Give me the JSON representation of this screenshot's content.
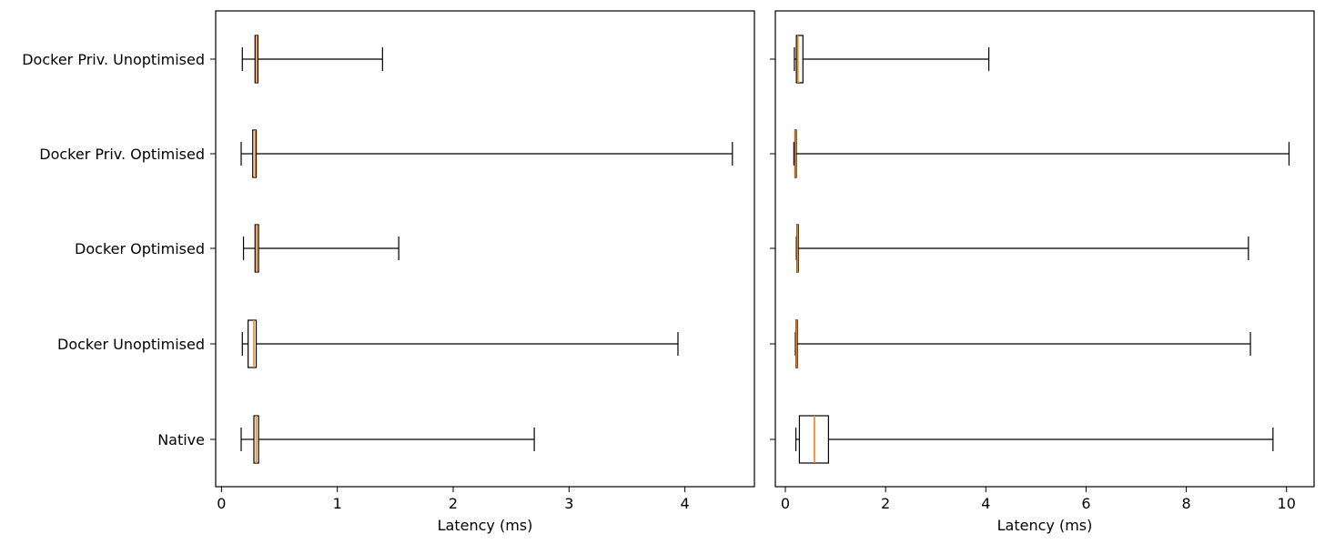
{
  "chart_data": [
    {
      "type": "boxplot",
      "orientation": "horizontal",
      "title": "",
      "xlabel": "Latency (ms)",
      "ylabel": "",
      "xlim": [
        -0.05,
        4.6
      ],
      "xticks": [
        0,
        1,
        2,
        3,
        4
      ],
      "xtick_labels": [
        "0",
        "1",
        "2",
        "3",
        "4"
      ],
      "categories": [
        "Docker Priv. Unoptimised",
        "Docker Priv. Optimised",
        "Docker Optimised",
        "Docker Unoptimised",
        "Native"
      ],
      "boxes": [
        {
          "category": "Docker Priv. Unoptimised",
          "whislo": 0.18,
          "q1": 0.29,
          "med": 0.305,
          "q3": 0.315,
          "whishi": 1.39
        },
        {
          "category": "Docker Priv. Optimised",
          "whislo": 0.17,
          "q1": 0.27,
          "med": 0.29,
          "q3": 0.3,
          "whishi": 4.41
        },
        {
          "category": "Docker Optimised",
          "whislo": 0.19,
          "q1": 0.29,
          "med": 0.305,
          "q3": 0.32,
          "whishi": 1.53
        },
        {
          "category": "Docker Unoptimised",
          "whislo": 0.18,
          "q1": 0.23,
          "med": 0.28,
          "q3": 0.3,
          "whishi": 3.94
        },
        {
          "category": "Native",
          "whislo": 0.17,
          "q1": 0.28,
          "med": 0.3,
          "q3": 0.32,
          "whishi": 2.7
        }
      ],
      "grid": false
    },
    {
      "type": "boxplot",
      "orientation": "horizontal",
      "title": "",
      "xlabel": "Latency (ms)",
      "ylabel": "",
      "xlim": [
        -0.2,
        10.55
      ],
      "xticks": [
        0,
        2,
        4,
        6,
        8,
        10
      ],
      "xtick_labels": [
        "0",
        "2",
        "4",
        "6",
        "8",
        "10"
      ],
      "categories": [
        "Docker Priv. Unoptimised",
        "Docker Priv. Optimised",
        "Docker Optimised",
        "Docker Unoptimised",
        "Native"
      ],
      "boxes": [
        {
          "category": "Docker Priv. Unoptimised",
          "whislo": 0.18,
          "q1": 0.22,
          "med": 0.25,
          "q3": 0.35,
          "whishi": 4.06
        },
        {
          "category": "Docker Priv. Optimised",
          "whislo": 0.17,
          "q1": 0.19,
          "med": 0.2,
          "q3": 0.21,
          "whishi": 10.05
        },
        {
          "category": "Docker Optimised",
          "whislo": 0.22,
          "q1": 0.23,
          "med": 0.24,
          "q3": 0.25,
          "whishi": 9.24
        },
        {
          "category": "Docker Unoptimised",
          "whislo": 0.2,
          "q1": 0.21,
          "med": 0.22,
          "q3": 0.23,
          "whishi": 9.28
        },
        {
          "category": "Native",
          "whislo": 0.21,
          "q1": 0.28,
          "med": 0.58,
          "q3": 0.86,
          "whishi": 9.73
        }
      ],
      "grid": false
    }
  ],
  "colors": {
    "median": "#ff7f0e",
    "box_edge": "#000000",
    "background": "#ffffff"
  }
}
